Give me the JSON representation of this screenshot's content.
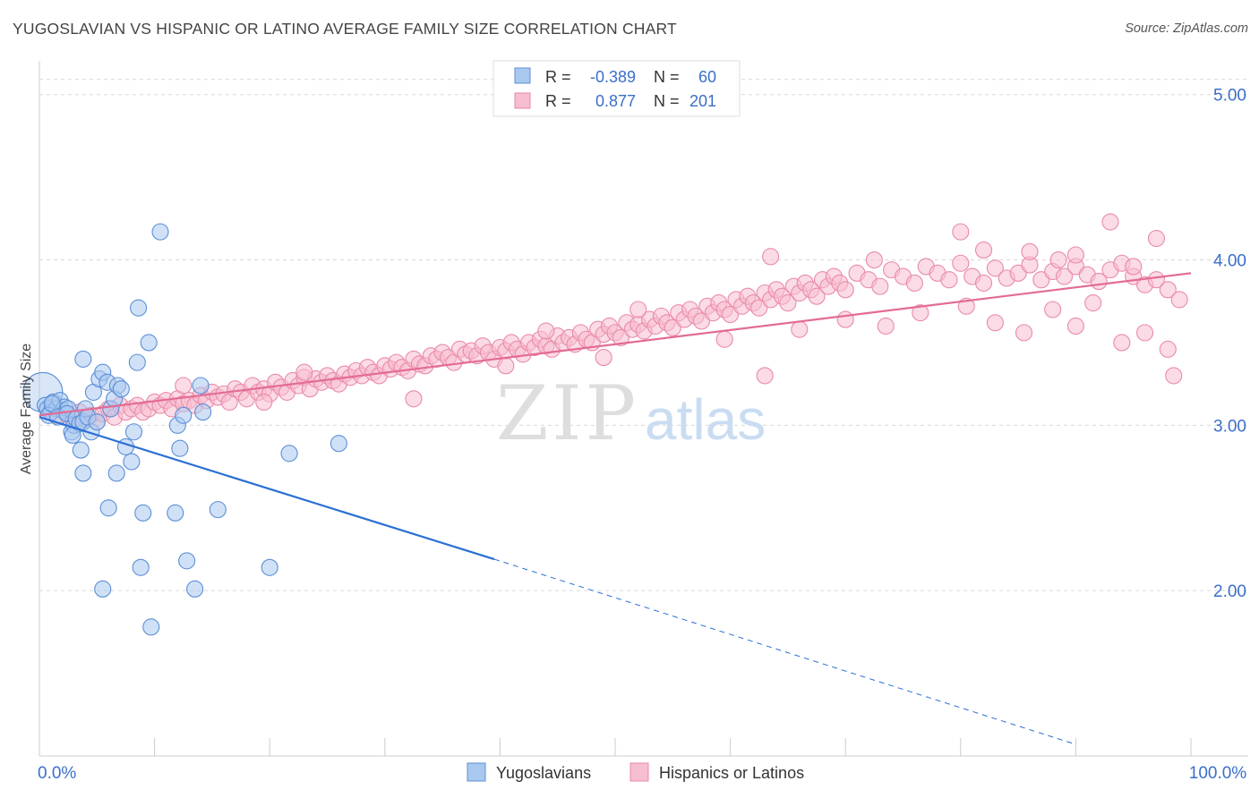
{
  "header": {
    "title": "YUGOSLAVIAN VS HISPANIC OR LATINO AVERAGE FAMILY SIZE CORRELATION CHART",
    "source": "Source: ZipAtlas.com"
  },
  "watermark": {
    "zip": "ZIP",
    "atlas": "atlas"
  },
  "legend_top": {
    "rows": [
      {
        "r_label": "R =",
        "r_value": "-0.389",
        "n_label": "N =",
        "n_value": "60"
      },
      {
        "r_label": "R =",
        "r_value": "0.877",
        "n_label": "N =",
        "n_value": "201"
      }
    ]
  },
  "legend_bottom": {
    "items": [
      {
        "label": "Yugoslavians"
      },
      {
        "label": "Hispanics or Latinos"
      }
    ]
  },
  "colors": {
    "blue_fill": "#a9c8f0",
    "blue_stroke": "#5b8fd6",
    "blue_line": "#2a6fd4",
    "pink_fill": "#f7bdd0",
    "pink_stroke": "#e98aa9",
    "pink_line": "#e36b95",
    "tick_label": "#3a6fc9",
    "grid": "#d8d8d8"
  },
  "chart_data": {
    "type": "scatter",
    "ylabel": "Average Family Size",
    "xlabel": "",
    "xlim": [
      0,
      100
    ],
    "ylim": [
      1.0,
      5.15
    ],
    "x_tick_labels": [
      {
        "value": 0,
        "label": "0.0%"
      },
      {
        "value": 100,
        "label": "100.0%"
      }
    ],
    "y_ticks": [
      {
        "value": 2.0,
        "label": "2.00"
      },
      {
        "value": 3.0,
        "label": "3.00"
      },
      {
        "value": 4.0,
        "label": "4.00"
      },
      {
        "value": 5.0,
        "label": "5.00"
      }
    ],
    "grid": true,
    "series": [
      {
        "name": "Yugoslavians",
        "r": -0.389,
        "n": 60,
        "trend": {
          "x0": 0,
          "y0": 3.05,
          "x1": 39.5,
          "y1": 2.19,
          "dash_x1": 90,
          "dash_y1": 1.07
        },
        "points": [
          [
            0.3,
            3.2
          ],
          [
            0.5,
            3.12
          ],
          [
            0.7,
            3.1
          ],
          [
            1,
            3.08
          ],
          [
            1.2,
            3.14
          ],
          [
            1.5,
            3.1
          ],
          [
            1.8,
            3.15
          ],
          [
            2,
            3.09
          ],
          [
            2.2,
            3.11
          ],
          [
            2.5,
            3.1
          ],
          [
            0.8,
            3.06
          ],
          [
            1.1,
            3.13
          ],
          [
            1.6,
            3.05
          ],
          [
            2.4,
            3.07
          ],
          [
            2.8,
            2.96
          ],
          [
            3,
            3.0
          ],
          [
            3.2,
            3.04
          ],
          [
            3.5,
            3.01
          ],
          [
            3.8,
            3.02
          ],
          [
            4,
            3.1
          ],
          [
            2.9,
            2.94
          ],
          [
            3.6,
            2.85
          ],
          [
            3.8,
            3.4
          ],
          [
            4.2,
            3.05
          ],
          [
            4.5,
            2.96
          ],
          [
            4.7,
            3.2
          ],
          [
            5,
            3.02
          ],
          [
            5.2,
            3.28
          ],
          [
            5.5,
            3.32
          ],
          [
            5.9,
            3.26
          ],
          [
            6.2,
            3.1
          ],
          [
            6.5,
            3.16
          ],
          [
            6.8,
            3.24
          ],
          [
            7.1,
            3.22
          ],
          [
            3.8,
            2.71
          ],
          [
            6.7,
            2.71
          ],
          [
            7.5,
            2.87
          ],
          [
            8,
            2.78
          ],
          [
            8.2,
            2.96
          ],
          [
            8.5,
            3.38
          ],
          [
            8.6,
            3.71
          ],
          [
            9.5,
            3.5
          ],
          [
            10.5,
            4.17
          ],
          [
            12,
            3.0
          ],
          [
            12.2,
            2.86
          ],
          [
            12.5,
            3.06
          ],
          [
            14,
            3.24
          ],
          [
            14.2,
            3.08
          ],
          [
            6,
            2.5
          ],
          [
            9,
            2.47
          ],
          [
            11.8,
            2.47
          ],
          [
            15.5,
            2.49
          ],
          [
            21.7,
            2.83
          ],
          [
            26,
            2.89
          ],
          [
            8.8,
            2.14
          ],
          [
            12.8,
            2.18
          ],
          [
            20,
            2.14
          ],
          [
            5.5,
            2.01
          ],
          [
            13.5,
            2.01
          ],
          [
            9.7,
            1.78
          ]
        ]
      },
      {
        "name": "Hispanics or Latinos",
        "r": 0.877,
        "n": 201,
        "trend": {
          "x0": 0,
          "y0": 3.06,
          "x1": 100,
          "y1": 3.92
        },
        "points": [
          [
            1.5,
            3.06
          ],
          [
            2,
            3.09
          ],
          [
            2.5,
            3.05
          ],
          [
            3,
            3.04
          ],
          [
            3.5,
            3.08
          ],
          [
            4,
            3.04
          ],
          [
            4.5,
            3.06
          ],
          [
            5,
            3.02
          ],
          [
            5.5,
            3.07
          ],
          [
            6,
            3.1
          ],
          [
            6.5,
            3.05
          ],
          [
            7,
            3.12
          ],
          [
            7.5,
            3.08
          ],
          [
            8,
            3.1
          ],
          [
            8.5,
            3.12
          ],
          [
            9,
            3.08
          ],
          [
            9.5,
            3.1
          ],
          [
            10,
            3.14
          ],
          [
            10.5,
            3.12
          ],
          [
            11,
            3.15
          ],
          [
            11.5,
            3.1
          ],
          [
            12,
            3.16
          ],
          [
            12.5,
            3.13
          ],
          [
            13,
            3.15
          ],
          [
            13.5,
            3.12
          ],
          [
            14,
            3.18
          ],
          [
            14.5,
            3.15
          ],
          [
            15,
            3.2
          ],
          [
            15.5,
            3.17
          ],
          [
            16,
            3.19
          ],
          [
            16.5,
            3.14
          ],
          [
            17,
            3.22
          ],
          [
            17.5,
            3.2
          ],
          [
            18,
            3.16
          ],
          [
            18.5,
            3.24
          ],
          [
            19,
            3.2
          ],
          [
            19.5,
            3.22
          ],
          [
            20,
            3.19
          ],
          [
            20.5,
            3.26
          ],
          [
            21,
            3.23
          ],
          [
            21.5,
            3.2
          ],
          [
            22,
            3.27
          ],
          [
            22.5,
            3.24
          ],
          [
            23,
            3.29
          ],
          [
            23.5,
            3.22
          ],
          [
            24,
            3.28
          ],
          [
            24.5,
            3.26
          ],
          [
            25,
            3.3
          ],
          [
            25.5,
            3.27
          ],
          [
            26,
            3.25
          ],
          [
            26.5,
            3.31
          ],
          [
            27,
            3.29
          ],
          [
            27.5,
            3.33
          ],
          [
            28,
            3.3
          ],
          [
            28.5,
            3.35
          ],
          [
            29,
            3.32
          ],
          [
            29.5,
            3.3
          ],
          [
            30,
            3.36
          ],
          [
            30.5,
            3.34
          ],
          [
            31,
            3.38
          ],
          [
            31.5,
            3.35
          ],
          [
            32,
            3.33
          ],
          [
            32.5,
            3.4
          ],
          [
            33,
            3.37
          ],
          [
            33.5,
            3.36
          ],
          [
            34,
            3.42
          ],
          [
            34.5,
            3.4
          ],
          [
            35,
            3.44
          ],
          [
            35.5,
            3.41
          ],
          [
            36,
            3.38
          ],
          [
            36.5,
            3.46
          ],
          [
            37,
            3.43
          ],
          [
            37.5,
            3.45
          ],
          [
            38,
            3.42
          ],
          [
            38.5,
            3.48
          ],
          [
            39,
            3.44
          ],
          [
            39.5,
            3.4
          ],
          [
            40,
            3.47
          ],
          [
            40.5,
            3.45
          ],
          [
            41,
            3.5
          ],
          [
            41.5,
            3.46
          ],
          [
            42,
            3.43
          ],
          [
            42.5,
            3.5
          ],
          [
            43,
            3.47
          ],
          [
            43.5,
            3.52
          ],
          [
            44,
            3.48
          ],
          [
            44.5,
            3.46
          ],
          [
            45,
            3.54
          ],
          [
            45.5,
            3.5
          ],
          [
            46,
            3.53
          ],
          [
            46.5,
            3.49
          ],
          [
            47,
            3.56
          ],
          [
            47.5,
            3.52
          ],
          [
            48,
            3.5
          ],
          [
            48.5,
            3.58
          ],
          [
            49,
            3.55
          ],
          [
            49.5,
            3.6
          ],
          [
            50,
            3.56
          ],
          [
            50.5,
            3.53
          ],
          [
            51,
            3.62
          ],
          [
            51.5,
            3.58
          ],
          [
            52,
            3.61
          ],
          [
            52.5,
            3.57
          ],
          [
            53,
            3.64
          ],
          [
            53.5,
            3.6
          ],
          [
            54,
            3.66
          ],
          [
            54.5,
            3.62
          ],
          [
            55,
            3.59
          ],
          [
            55.5,
            3.68
          ],
          [
            56,
            3.64
          ],
          [
            56.5,
            3.7
          ],
          [
            57,
            3.66
          ],
          [
            57.5,
            3.63
          ],
          [
            58,
            3.72
          ],
          [
            58.5,
            3.68
          ],
          [
            59,
            3.74
          ],
          [
            59.5,
            3.7
          ],
          [
            60,
            3.67
          ],
          [
            60.5,
            3.76
          ],
          [
            61,
            3.72
          ],
          [
            61.5,
            3.78
          ],
          [
            62,
            3.74
          ],
          [
            62.5,
            3.71
          ],
          [
            63,
            3.8
          ],
          [
            63.5,
            3.76
          ],
          [
            64,
            3.82
          ],
          [
            64.5,
            3.78
          ],
          [
            65,
            3.74
          ],
          [
            65.5,
            3.84
          ],
          [
            66,
            3.8
          ],
          [
            66.5,
            3.86
          ],
          [
            67,
            3.82
          ],
          [
            67.5,
            3.78
          ],
          [
            68,
            3.88
          ],
          [
            68.5,
            3.84
          ],
          [
            69,
            3.9
          ],
          [
            69.5,
            3.86
          ],
          [
            70,
            3.82
          ],
          [
            71,
            3.92
          ],
          [
            72,
            3.88
          ],
          [
            73,
            3.84
          ],
          [
            74,
            3.94
          ],
          [
            75,
            3.9
          ],
          [
            76,
            3.86
          ],
          [
            77,
            3.96
          ],
          [
            78,
            3.92
          ],
          [
            79,
            3.88
          ],
          [
            80,
            3.98
          ],
          [
            81,
            3.9
          ],
          [
            82,
            3.86
          ],
          [
            83,
            3.95
          ],
          [
            84,
            3.89
          ],
          [
            85,
            3.92
          ],
          [
            86,
            3.97
          ],
          [
            87,
            3.88
          ],
          [
            88,
            3.93
          ],
          [
            89,
            3.9
          ],
          [
            90,
            3.96
          ],
          [
            91,
            3.91
          ],
          [
            92,
            3.87
          ],
          [
            93,
            3.94
          ],
          [
            94,
            3.98
          ],
          [
            95,
            3.9
          ],
          [
            96,
            3.85
          ],
          [
            97,
            3.88
          ],
          [
            98,
            3.82
          ],
          [
            99,
            3.76
          ],
          [
            12.5,
            3.24
          ],
          [
            19.5,
            3.14
          ],
          [
            23,
            3.32
          ],
          [
            32.5,
            3.16
          ],
          [
            40.5,
            3.36
          ],
          [
            44,
            3.57
          ],
          [
            49,
            3.41
          ],
          [
            52,
            3.7
          ],
          [
            59.5,
            3.52
          ],
          [
            63,
            3.3
          ],
          [
            66,
            3.58
          ],
          [
            70,
            3.64
          ],
          [
            73.5,
            3.6
          ],
          [
            76.5,
            3.68
          ],
          [
            80.5,
            3.72
          ],
          [
            83,
            3.62
          ],
          [
            85.5,
            3.56
          ],
          [
            88,
            3.7
          ],
          [
            90,
            3.6
          ],
          [
            91.5,
            3.74
          ],
          [
            94,
            3.5
          ],
          [
            96,
            3.56
          ],
          [
            98,
            3.46
          ],
          [
            63.5,
            4.02
          ],
          [
            72.5,
            4.0
          ],
          [
            80,
            4.17
          ],
          [
            82,
            4.06
          ],
          [
            86,
            4.05
          ],
          [
            88.5,
            4.0
          ],
          [
            90,
            4.03
          ],
          [
            93,
            4.23
          ],
          [
            95,
            3.96
          ],
          [
            97,
            4.13
          ],
          [
            98.5,
            3.3
          ]
        ]
      }
    ]
  }
}
